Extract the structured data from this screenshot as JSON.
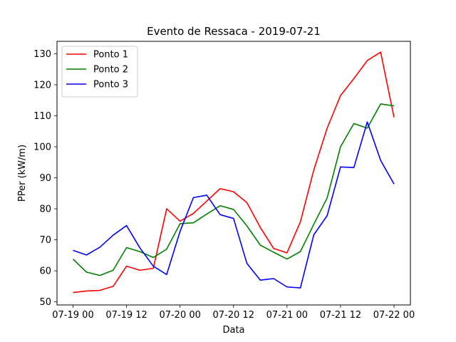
{
  "chart_data": {
    "type": "line",
    "title": "Evento de Ressaca - 2019-07-21",
    "xlabel": "Data",
    "ylabel": "PPer (kW/m)",
    "x": [
      "2019-07-19 00:00",
      "2019-07-19 03:00",
      "2019-07-19 06:00",
      "2019-07-19 09:00",
      "2019-07-19 12:00",
      "2019-07-19 15:00",
      "2019-07-19 18:00",
      "2019-07-19 21:00",
      "2019-07-20 00:00",
      "2019-07-20 03:00",
      "2019-07-20 06:00",
      "2019-07-20 09:00",
      "2019-07-20 12:00",
      "2019-07-20 15:00",
      "2019-07-20 18:00",
      "2019-07-20 21:00",
      "2019-07-21 00:00",
      "2019-07-21 03:00",
      "2019-07-21 06:00",
      "2019-07-21 09:00",
      "2019-07-21 12:00",
      "2019-07-21 15:00",
      "2019-07-21 18:00",
      "2019-07-21 21:00",
      "2019-07-22 00:00"
    ],
    "x_ticks": [
      "07-19 00",
      "07-19 12",
      "07-20 00",
      "07-20 12",
      "07-21 00",
      "07-21 12",
      "07-22 00"
    ],
    "y_ticks": [
      50,
      60,
      70,
      80,
      90,
      100,
      110,
      120,
      130
    ],
    "ylim": [
      49,
      134
    ],
    "grid": false,
    "legend_position": "top-left",
    "series": [
      {
        "name": "Ponto 1",
        "color": "#ff0000",
        "values": [
          53.0,
          53.5,
          53.7,
          55.0,
          61.5,
          60.2,
          60.8,
          80.0,
          76.0,
          78.5,
          82.5,
          86.5,
          85.5,
          82.0,
          74.0,
          67.2,
          65.8,
          75.8,
          92.5,
          106.0,
          116.5,
          122.0,
          127.8,
          130.5,
          109.5
        ]
      },
      {
        "name": "Ponto 2",
        "color": "#008000",
        "values": [
          63.8,
          59.6,
          58.5,
          60.2,
          67.5,
          66.2,
          64.3,
          67.0,
          75.2,
          75.5,
          78.3,
          81.0,
          79.8,
          74.5,
          68.3,
          66.0,
          63.8,
          66.2,
          75.0,
          83.5,
          100.0,
          107.5,
          106.0,
          113.8,
          113.2
        ]
      },
      {
        "name": "Ponto 3",
        "color": "#0000ff",
        "values": [
          66.6,
          65.1,
          67.6,
          71.5,
          74.6,
          67.4,
          61.5,
          58.8,
          72.7,
          83.6,
          84.4,
          78.1,
          76.9,
          62.4,
          57.0,
          57.5,
          54.8,
          54.5,
          71.6,
          77.8,
          93.5,
          93.3,
          108.0,
          95.6,
          88.0
        ]
      }
    ]
  }
}
